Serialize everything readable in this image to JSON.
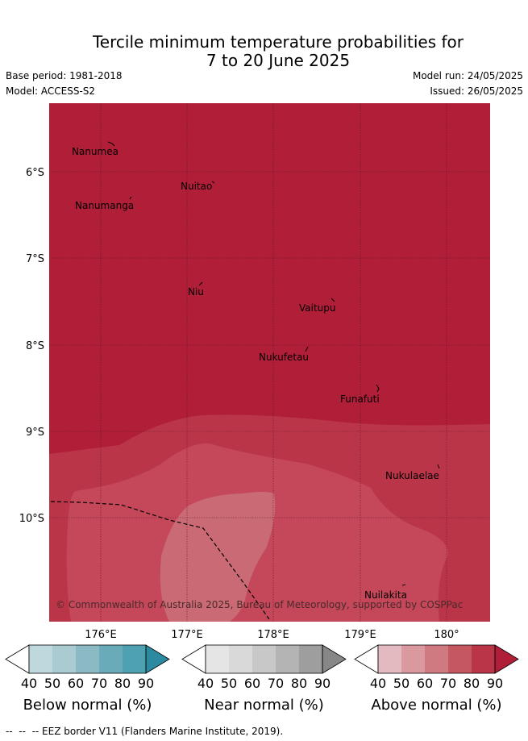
{
  "title_line1": "Tercile minimum temperature probabilities for",
  "title_line2": "7 to 20 June 2025",
  "base_period": "Base period: 1981-2018",
  "model": "Model: ACCESS-S2",
  "model_run": "Model run: 24/05/2025",
  "issued": "Issued: 26/05/2025",
  "lat_labels": [
    "6°S",
    "7°S",
    "8°S",
    "9°S",
    "10°S"
  ],
  "lon_labels": [
    "176°E",
    "177°E",
    "178°E",
    "179°E",
    "180°"
  ],
  "places": [
    "Nanumea",
    "Nuitao",
    "Nanumanga",
    "Niu",
    "Vaitupu",
    "Nukufetau",
    "Funafuti",
    "Nukulaelae",
    "Nuilakita"
  ],
  "copyright": "© Commonwealth of Australia 2025, Bureau of Meteorology, supported by COSPPac",
  "colorbars": [
    {
      "title": "Below normal (%)",
      "ticks": [
        "40",
        "50",
        "60",
        "70",
        "80",
        "90"
      ],
      "colors": [
        "#ffffff",
        "#bfd8dd",
        "#a9cbd1",
        "#8bb9c4",
        "#6aabb9",
        "#4ea1b1",
        "#2b8a9f"
      ]
    },
    {
      "title": "Near normal (%)",
      "ticks": [
        "40",
        "50",
        "60",
        "70",
        "80",
        "90"
      ],
      "colors": [
        "#ffffff",
        "#e5e5e5",
        "#d9d9d9",
        "#c8c8c8",
        "#b4b4b4",
        "#9e9e9e",
        "#878787"
      ]
    },
    {
      "title": "Above normal (%)",
      "ticks": [
        "40",
        "50",
        "60",
        "70",
        "80",
        "90"
      ],
      "colors": [
        "#ffffff",
        "#e3bac0",
        "#d9999f",
        "#cf7980",
        "#c4575f",
        "#bb3548",
        "#b01e38"
      ]
    }
  ],
  "map_colors": {
    "above_90": "#b01e38",
    "above_80": "#bb3548",
    "above_70": "#c4475a",
    "above_60": "#ca6a75"
  },
  "footnote": "--  --  -- EEZ border V11 (Flanders Marine Institute, 2019)."
}
